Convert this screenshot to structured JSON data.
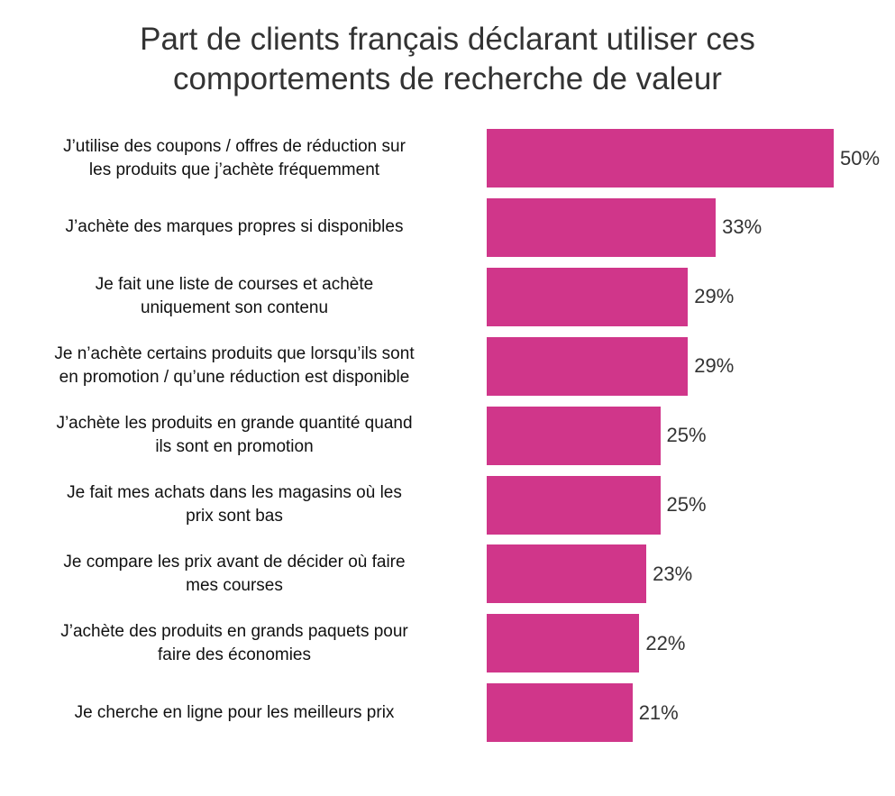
{
  "chart_data": {
    "type": "bar",
    "orientation": "horizontal",
    "title": "Part de clients français déclarant utiliser ces\ncomportements de recherche de valeur",
    "categories": [
      "J’utilise des coupons / offres de réduction sur\nles produits que j’achète fréquemment",
      "J’achète des marques propres si disponibles",
      "Je fait une liste de courses et achète\nuniquement son contenu",
      "Je n’achète certains produits que lorsqu’ils sont\nen promotion / qu’une réduction est disponible",
      "J’achète les produits en grande quantité quand\nils sont en promotion",
      "Je fait mes achats dans les magasins où les\nprix sont bas",
      "Je compare les prix avant de décider où faire\nmes courses",
      "J’achète des produits en grands paquets pour\nfaire des économies",
      "Je cherche en ligne pour les meilleurs prix"
    ],
    "values": [
      50,
      33,
      29,
      29,
      25,
      25,
      23,
      22,
      21
    ],
    "value_labels": [
      "50%",
      "33%",
      "29%",
      "29%",
      "25%",
      "25%",
      "23%",
      "22%",
      "21%"
    ],
    "color": "#d0368a"
  }
}
